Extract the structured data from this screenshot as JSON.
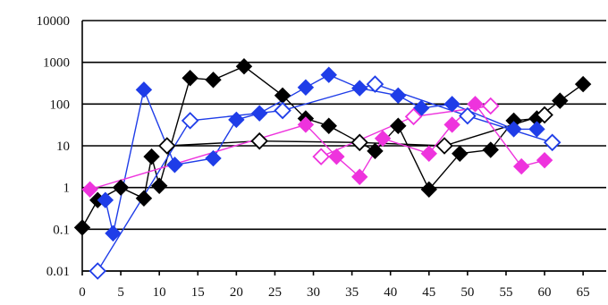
{
  "chart_data": {
    "type": "line",
    "title": "",
    "xlabel": "",
    "ylabel": "",
    "x_ticks": [
      "0",
      "5",
      "10",
      "15",
      "20",
      "25",
      "30",
      "35",
      "40",
      "45",
      "50",
      "55",
      "60",
      "65"
    ],
    "y_ticks": [
      "0.01",
      "0.1",
      "1",
      "10",
      "100",
      "1000",
      "10000"
    ],
    "xlim": [
      0,
      68
    ],
    "ylim": [
      0.01,
      10000
    ],
    "y_scale": "log",
    "grid": "horizontal",
    "legend": "none",
    "series": [
      {
        "color": "#000000",
        "marker": "diamond",
        "filled": true,
        "points": [
          [
            0,
            0.11
          ],
          [
            2,
            0.5
          ],
          [
            5,
            1
          ],
          [
            8,
            0.55
          ],
          [
            9,
            5.5
          ],
          [
            10,
            1.1
          ],
          [
            14,
            420
          ],
          [
            17,
            380
          ],
          [
            21,
            800
          ],
          [
            26,
            160
          ],
          [
            29,
            45
          ],
          [
            32,
            30
          ],
          [
            38,
            7.5
          ],
          [
            41,
            30
          ],
          [
            45,
            0.9
          ],
          [
            49,
            6.5
          ],
          [
            53,
            8
          ],
          [
            56,
            40
          ],
          [
            59,
            45
          ],
          [
            62,
            120
          ],
          [
            65,
            300
          ]
        ]
      },
      {
        "color": "#000000",
        "marker": "diamond",
        "filled": false,
        "points": [
          [
            11,
            10
          ],
          [
            23,
            13
          ],
          [
            36,
            12
          ],
          [
            47,
            10
          ],
          [
            60,
            55
          ]
        ]
      },
      {
        "color": "#1f3de8",
        "marker": "diamond",
        "filled": true,
        "points": [
          [
            3,
            0.5
          ],
          [
            4,
            0.08
          ],
          [
            8,
            220
          ],
          [
            12,
            3.5
          ],
          [
            17,
            5
          ],
          [
            20,
            42
          ],
          [
            23,
            60
          ],
          [
            29,
            250
          ],
          [
            32,
            500
          ],
          [
            36,
            240
          ],
          [
            41,
            160
          ],
          [
            44,
            80
          ],
          [
            48,
            100
          ],
          [
            56,
            25
          ],
          [
            59,
            25
          ]
        ]
      },
      {
        "color": "#1f3de8",
        "marker": "diamond",
        "filled": false,
        "points": [
          [
            2,
            0.01
          ],
          [
            14,
            40
          ],
          [
            26,
            70
          ],
          [
            38,
            300
          ],
          [
            50,
            52
          ],
          [
            61,
            12
          ]
        ]
      },
      {
        "color": "#ee33dd",
        "marker": "diamond",
        "filled": true,
        "points": [
          [
            1,
            0.9
          ],
          [
            29,
            32
          ],
          [
            33,
            5.5
          ],
          [
            36,
            1.8
          ],
          [
            39,
            15
          ],
          [
            45,
            6.5
          ],
          [
            48,
            32
          ],
          [
            51,
            100
          ],
          [
            57,
            3.2
          ],
          [
            60,
            4.5
          ]
        ]
      },
      {
        "color": "#ee33dd",
        "marker": "diamond",
        "filled": false,
        "points": [
          [
            31,
            5.5
          ],
          [
            43,
            50
          ],
          [
            53,
            90
          ]
        ]
      }
    ]
  }
}
